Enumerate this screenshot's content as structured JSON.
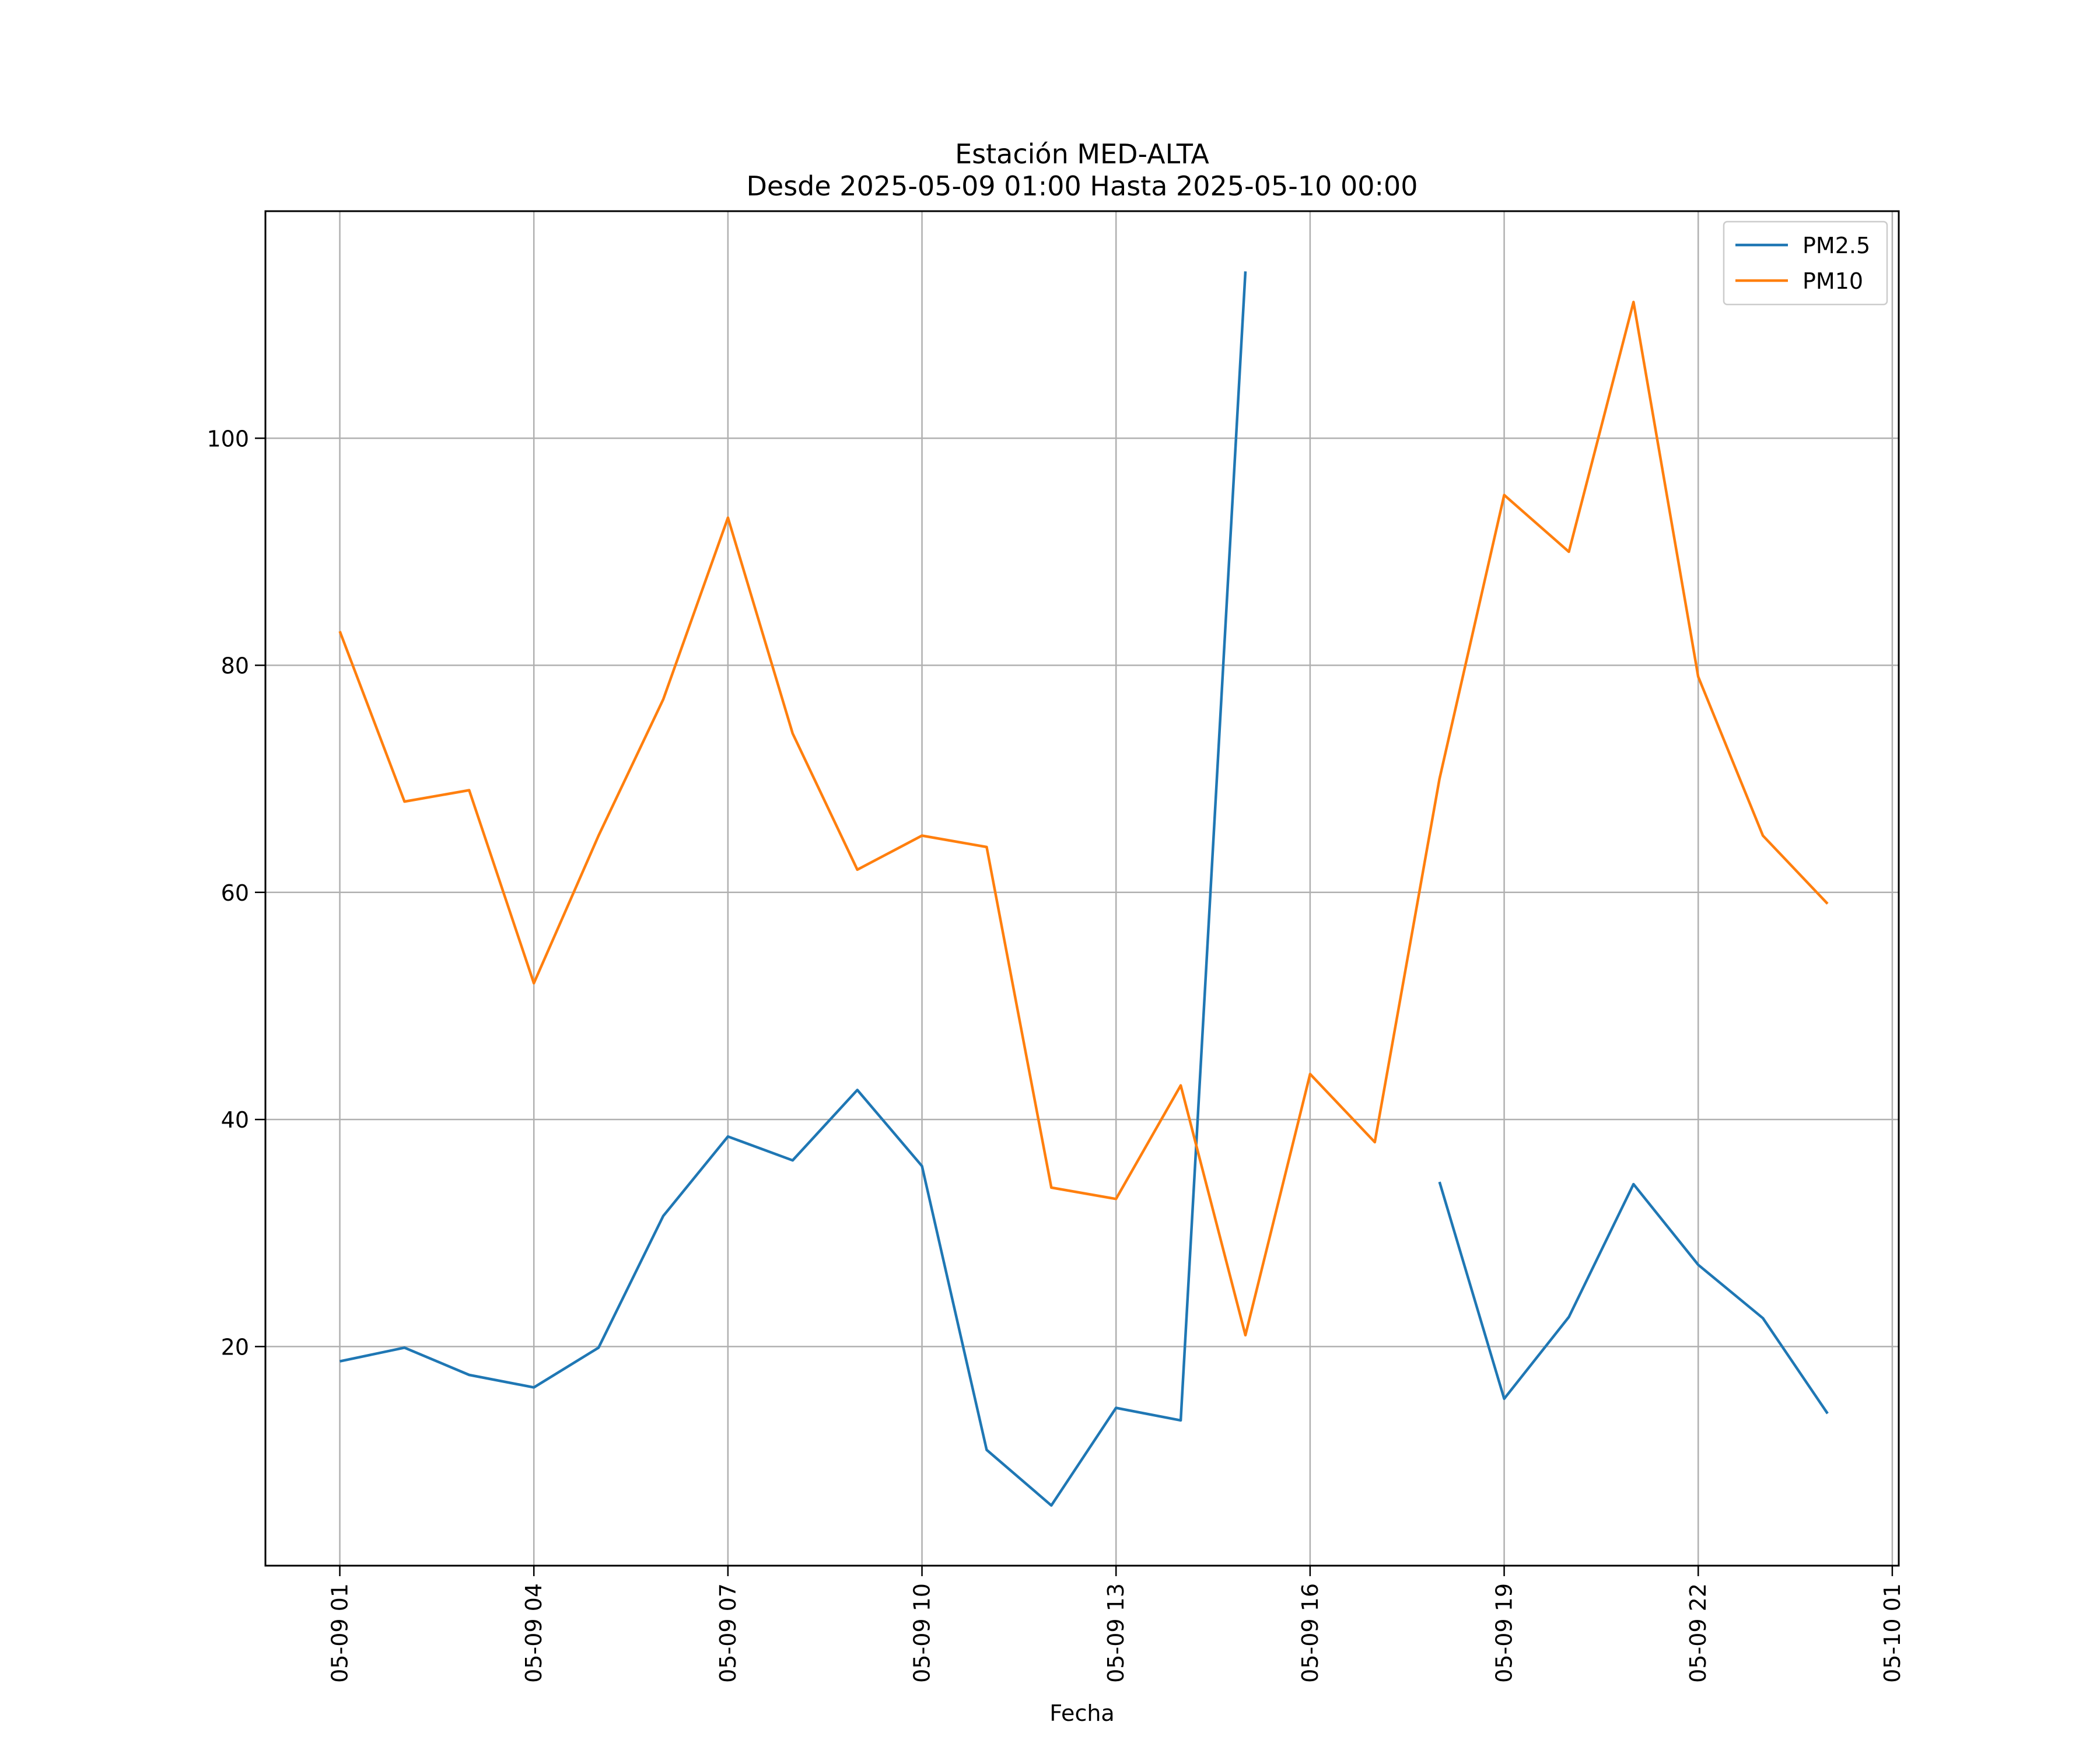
{
  "chart_data": {
    "type": "line",
    "title": "Estación MED-ALTA",
    "subtitle": "Desde 2025-05-09 01:00 Hasta 2025-05-10 00:00",
    "xlabel": "Fecha",
    "ylabel": "",
    "x": [
      "05-09 01",
      "05-09 02",
      "05-09 03",
      "05-09 04",
      "05-09 05",
      "05-09 06",
      "05-09 07",
      "05-09 08",
      "05-09 09",
      "05-09 10",
      "05-09 11",
      "05-09 12",
      "05-09 13",
      "05-09 14",
      "05-09 15",
      "05-09 16",
      "05-09 17",
      "05-09 18",
      "05-09 19",
      "05-09 20",
      "05-09 21",
      "05-09 22",
      "05-09 23",
      "05-10 00"
    ],
    "x_ticks": [
      "05-09 01",
      "05-09 04",
      "05-09 07",
      "05-09 10",
      "05-09 13",
      "05-09 16",
      "05-09 19",
      "05-09 22",
      "05-10 01"
    ],
    "xlim": [
      "05-08 23:51",
      "05-10 01:06"
    ],
    "y_ticks": [
      "20",
      "40",
      "60",
      "80",
      "100"
    ],
    "ylim": [
      0.7,
      120
    ],
    "grid": true,
    "legend_position": "top-right",
    "series": [
      {
        "name": "PM2.5",
        "color": "#1f77b4",
        "values": [
          18.7,
          19.9,
          17.5,
          16.4,
          19.9,
          31.5,
          38.5,
          36.4,
          42.6,
          35.9,
          10.9,
          6.0,
          14.6,
          13.5,
          114.7,
          null,
          null,
          34.5,
          15.4,
          22.6,
          34.3,
          27.2,
          22.5,
          14.1
        ]
      },
      {
        "name": "PM10",
        "color": "#ff7f0e",
        "values": [
          83,
          68,
          69,
          52,
          65,
          77,
          93,
          74,
          62,
          65,
          64,
          34,
          33,
          43,
          21,
          44,
          38,
          70,
          95,
          90,
          112,
          79,
          65,
          59
        ]
      }
    ]
  }
}
